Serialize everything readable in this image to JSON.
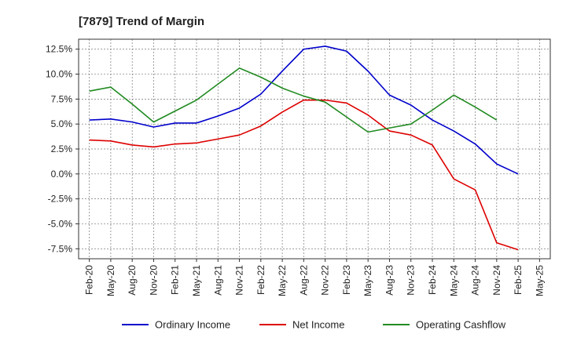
{
  "chart_data": {
    "type": "line",
    "title": "[7879]  Trend of Margin",
    "xlabel": "",
    "ylabel": "",
    "categories": [
      "Feb-20",
      "May-20",
      "Aug-20",
      "Nov-20",
      "Feb-21",
      "May-21",
      "Aug-21",
      "Nov-21",
      "Feb-22",
      "May-22",
      "Aug-22",
      "Nov-22",
      "Feb-23",
      "May-23",
      "Aug-23",
      "Nov-23",
      "Feb-24",
      "May-24",
      "Aug-24",
      "Nov-24",
      "Feb-25",
      "May-25"
    ],
    "ylim": [
      -8.5,
      13.5
    ],
    "yticks": [
      12.5,
      10.0,
      7.5,
      5.0,
      2.5,
      0.0,
      -2.5,
      -5.0,
      -7.5
    ],
    "ytick_labels": [
      "12.5%",
      "10.0%",
      "7.5%",
      "5.0%",
      "2.5%",
      "0.0%",
      "-2.5%",
      "-5.0%",
      "-7.5%"
    ],
    "grid": true,
    "legend_position": "bottom",
    "series": [
      {
        "name": "Ordinary Income",
        "color": "#0000cc",
        "values": [
          5.4,
          5.5,
          5.2,
          4.7,
          5.1,
          5.1,
          5.8,
          6.6,
          8.0,
          10.3,
          12.5,
          12.8,
          12.3,
          10.3,
          7.9,
          6.9,
          5.4,
          4.3,
          3.0,
          1.0,
          0.0,
          null
        ]
      },
      {
        "name": "Net Income",
        "color": "#dd0000",
        "values": [
          3.4,
          3.3,
          2.9,
          2.7,
          3.0,
          3.1,
          3.5,
          3.9,
          4.8,
          6.2,
          7.4,
          7.4,
          7.1,
          5.9,
          4.3,
          3.9,
          2.9,
          -0.5,
          -1.6,
          -6.9,
          -7.6,
          null
        ]
      },
      {
        "name": "Operating Cashflow",
        "color": "#228B22",
        "values": [
          8.3,
          8.7,
          7.0,
          5.2,
          6.3,
          7.4,
          9.0,
          10.6,
          9.7,
          8.6,
          7.8,
          7.2,
          5.7,
          4.2,
          4.6,
          5.0,
          6.4,
          7.9,
          6.7,
          5.4,
          null,
          null
        ]
      }
    ]
  }
}
